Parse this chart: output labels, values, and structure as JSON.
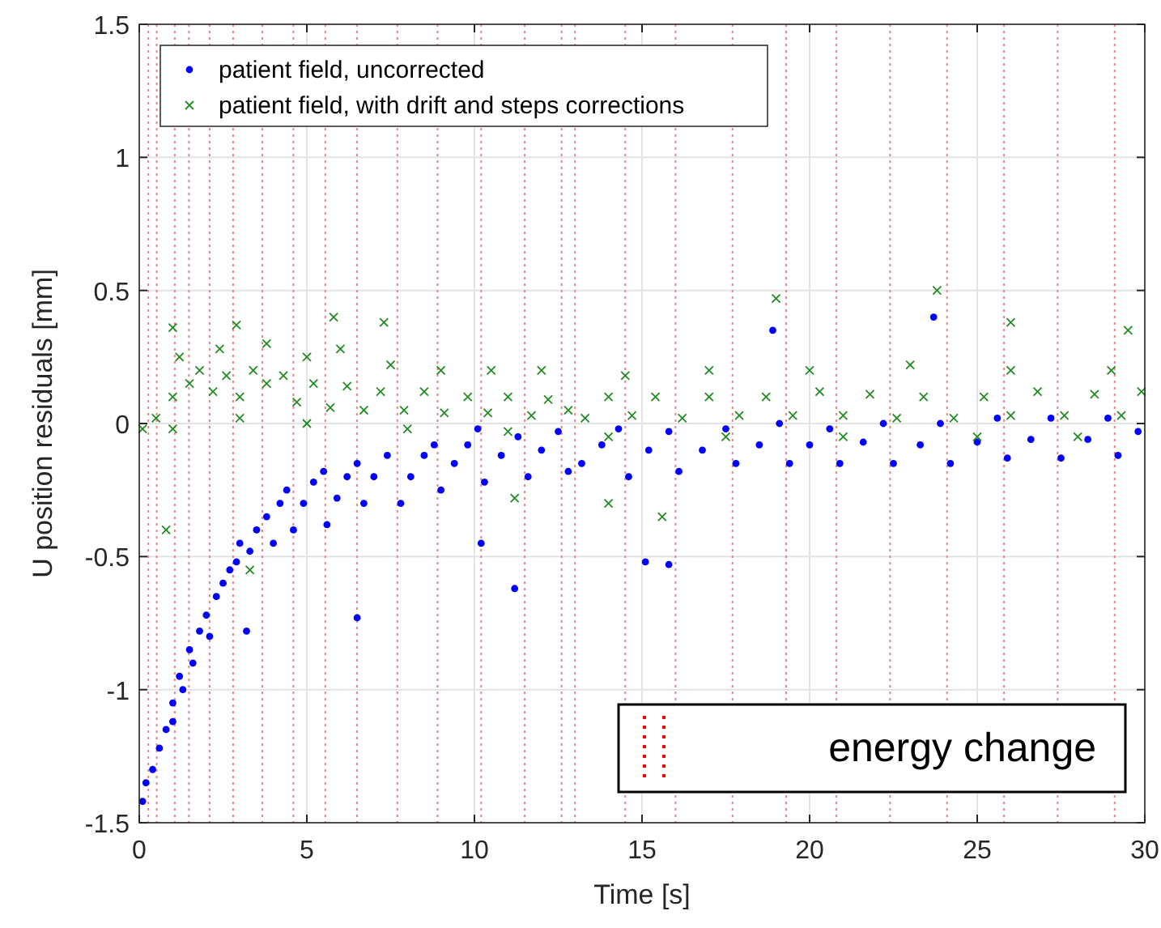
{
  "chart_data": {
    "type": "scatter",
    "xlabel": "Time [s]",
    "ylabel": "U position residuals [mm]",
    "xlim": [
      0,
      30
    ],
    "ylim": [
      -1.5,
      1.5
    ],
    "xticks": [
      0,
      5,
      10,
      15,
      20,
      25,
      30
    ],
    "yticks": [
      -1.5,
      -1,
      -0.5,
      0,
      0.5,
      1,
      1.5
    ],
    "grid": true,
    "legend": "top left",
    "series": [
      {
        "name": "patient field, uncorrected",
        "color": "#0000ff",
        "marker": "circle",
        "x": [
          0.1,
          0.2,
          0.4,
          0.6,
          0.8,
          1.0,
          1.0,
          1.2,
          1.3,
          1.5,
          1.6,
          1.8,
          2.0,
          2.1,
          2.3,
          2.5,
          2.7,
          2.9,
          3.0,
          3.3,
          3.5,
          3.8,
          4.0,
          4.2,
          4.4,
          4.6,
          4.9,
          5.2,
          5.5,
          5.6,
          5.9,
          6.2,
          6.5,
          6.7,
          7.0,
          7.4,
          7.8,
          8.1,
          8.5,
          8.8,
          9.0,
          9.4,
          9.8,
          10.1,
          10.3,
          10.8,
          11.3,
          11.6,
          12.0,
          12.5,
          12.8,
          13.2,
          13.8,
          14.3,
          14.6,
          15.2,
          15.8,
          16.1,
          16.8,
          17.5,
          17.8,
          18.5,
          19.1,
          19.4,
          20.0,
          20.6,
          20.9,
          21.6,
          22.2,
          22.5,
          23.3,
          23.9,
          24.2,
          25.0,
          25.6,
          25.9,
          26.6,
          27.2,
          27.5,
          28.3,
          28.9,
          29.2,
          29.8,
          3.2,
          6.5,
          11.2,
          15.1,
          15.8,
          10.2,
          18.9,
          23.7
        ],
        "values": [
          -1.42,
          -1.35,
          -1.3,
          -1.22,
          -1.15,
          -1.05,
          -1.12,
          -0.95,
          -1.0,
          -0.85,
          -0.9,
          -0.78,
          -0.72,
          -0.8,
          -0.65,
          -0.6,
          -0.55,
          -0.52,
          -0.45,
          -0.48,
          -0.4,
          -0.35,
          -0.45,
          -0.3,
          -0.25,
          -0.4,
          -0.3,
          -0.22,
          -0.18,
          -0.38,
          -0.28,
          -0.2,
          -0.15,
          -0.3,
          -0.2,
          -0.12,
          -0.3,
          -0.2,
          -0.12,
          -0.08,
          -0.25,
          -0.15,
          -0.08,
          -0.02,
          -0.22,
          -0.12,
          -0.05,
          -0.2,
          -0.1,
          -0.03,
          -0.18,
          -0.15,
          -0.08,
          -0.02,
          -0.2,
          -0.1,
          -0.03,
          -0.18,
          -0.1,
          -0.02,
          -0.15,
          -0.08,
          0.0,
          -0.15,
          -0.08,
          -0.02,
          -0.15,
          -0.07,
          0.0,
          -0.15,
          -0.08,
          0.0,
          -0.15,
          -0.07,
          0.02,
          -0.13,
          -0.06,
          0.02,
          -0.13,
          -0.06,
          0.02,
          -0.12,
          -0.03,
          -0.78,
          -0.73,
          -0.62,
          -0.52,
          -0.53,
          -0.45,
          0.35,
          0.4
        ]
      },
      {
        "name": "patient field, with drift and steps corrections",
        "color": "#228b22",
        "marker": "cross",
        "x": [
          0.1,
          0.5,
          1.0,
          1.5,
          1.8,
          2.2,
          2.6,
          3.0,
          3.4,
          3.8,
          4.3,
          4.7,
          5.2,
          5.7,
          6.2,
          6.7,
          7.2,
          7.9,
          8.5,
          9.1,
          9.8,
          10.4,
          11.0,
          11.7,
          12.2,
          12.8,
          13.3,
          14.0,
          14.7,
          15.4,
          16.2,
          17.0,
          17.9,
          18.7,
          19.5,
          20.3,
          21.0,
          21.8,
          22.6,
          23.4,
          24.3,
          25.2,
          26.0,
          26.8,
          27.6,
          28.5,
          29.3,
          29.9,
          1.2,
          2.4,
          3.8,
          5.0,
          6.0,
          7.5,
          9.0,
          10.5,
          12.0,
          14.5,
          17.0,
          20.0,
          23.0,
          26.0,
          29.0,
          1.0,
          3.0,
          5.0,
          8.0,
          11.0,
          14.0,
          17.5,
          21.0,
          25.0,
          28.0,
          0.8,
          3.3,
          2.9,
          5.8,
          7.3,
          11.2,
          14.0,
          15.6,
          19.0,
          23.8,
          26.0,
          29.5,
          1.0
        ],
        "values": [
          -0.02,
          0.02,
          0.1,
          0.15,
          0.2,
          0.12,
          0.18,
          0.1,
          0.2,
          0.15,
          0.18,
          0.08,
          0.15,
          0.06,
          0.14,
          0.05,
          0.12,
          0.05,
          0.12,
          0.04,
          0.1,
          0.04,
          0.1,
          0.03,
          0.09,
          0.05,
          0.02,
          0.1,
          0.03,
          0.1,
          0.02,
          0.1,
          0.03,
          0.1,
          0.03,
          0.12,
          0.03,
          0.11,
          0.02,
          0.1,
          0.02,
          0.1,
          0.03,
          0.12,
          0.03,
          0.11,
          0.03,
          0.12,
          0.25,
          0.28,
          0.3,
          0.25,
          0.28,
          0.22,
          0.2,
          0.2,
          0.2,
          0.18,
          0.2,
          0.2,
          0.22,
          0.2,
          0.2,
          -0.02,
          0.02,
          0.0,
          -0.02,
          -0.03,
          -0.05,
          -0.05,
          -0.05,
          -0.05,
          -0.05,
          -0.4,
          -0.55,
          0.37,
          0.4,
          0.38,
          -0.28,
          -0.3,
          -0.35,
          0.47,
          0.5,
          0.38,
          0.35,
          0.36
        ]
      }
    ],
    "ref_lines": [
      {
        "axis": "x",
        "value": 0.27,
        "color": "#f08080",
        "line_style": "dotted"
      },
      {
        "axis": "x",
        "value": 0.52,
        "color": "#f08080",
        "line_style": "dotted"
      },
      {
        "axis": "x",
        "value": 1.06,
        "color": "#f08080",
        "line_style": "dotted"
      },
      {
        "axis": "x",
        "value": 1.48,
        "color": "#f08080",
        "line_style": "dotted"
      },
      {
        "axis": "x",
        "value": 2.1,
        "color": "#f08080",
        "line_style": "dotted"
      },
      {
        "axis": "x",
        "value": 2.8,
        "color": "#f08080",
        "line_style": "dotted"
      },
      {
        "axis": "x",
        "value": 3.67,
        "color": "#f08080",
        "line_style": "dotted"
      },
      {
        "axis": "x",
        "value": 4.6,
        "color": "#f08080",
        "line_style": "dotted"
      },
      {
        "axis": "x",
        "value": 5.55,
        "color": "#f08080",
        "line_style": "dotted"
      },
      {
        "axis": "x",
        "value": 6.5,
        "color": "#f08080",
        "line_style": "dotted"
      },
      {
        "axis": "x",
        "value": 7.7,
        "color": "#f08080",
        "line_style": "dotted"
      },
      {
        "axis": "x",
        "value": 8.9,
        "color": "#f08080",
        "line_style": "dotted"
      },
      {
        "axis": "x",
        "value": 10.2,
        "color": "#f08080",
        "line_style": "dotted"
      },
      {
        "axis": "x",
        "value": 11.5,
        "color": "#f08080",
        "line_style": "dotted"
      },
      {
        "axis": "x",
        "value": 12.6,
        "color": "#f08080",
        "line_style": "dotted"
      },
      {
        "axis": "x",
        "value": 13.0,
        "color": "#f08080",
        "line_style": "dotted"
      },
      {
        "axis": "x",
        "value": 14.5,
        "color": "#f08080",
        "line_style": "dotted"
      },
      {
        "axis": "x",
        "value": 16.0,
        "color": "#f08080",
        "line_style": "dotted"
      },
      {
        "axis": "x",
        "value": 17.7,
        "color": "#f08080",
        "line_style": "dotted"
      },
      {
        "axis": "x",
        "value": 19.3,
        "color": "#f08080",
        "line_style": "dotted"
      },
      {
        "axis": "x",
        "value": 20.8,
        "color": "#f08080",
        "line_style": "dotted"
      },
      {
        "axis": "x",
        "value": 22.4,
        "color": "#f08080",
        "line_style": "dotted"
      },
      {
        "axis": "x",
        "value": 24.1,
        "color": "#f08080",
        "line_style": "dotted"
      },
      {
        "axis": "x",
        "value": 25.8,
        "color": "#f08080",
        "line_style": "dotted"
      },
      {
        "axis": "x",
        "value": 27.4,
        "color": "#f08080",
        "line_style": "dotted"
      },
      {
        "axis": "x",
        "value": 29.1,
        "color": "#f08080",
        "line_style": "dotted"
      }
    ],
    "annotations": [
      "energy change"
    ]
  }
}
